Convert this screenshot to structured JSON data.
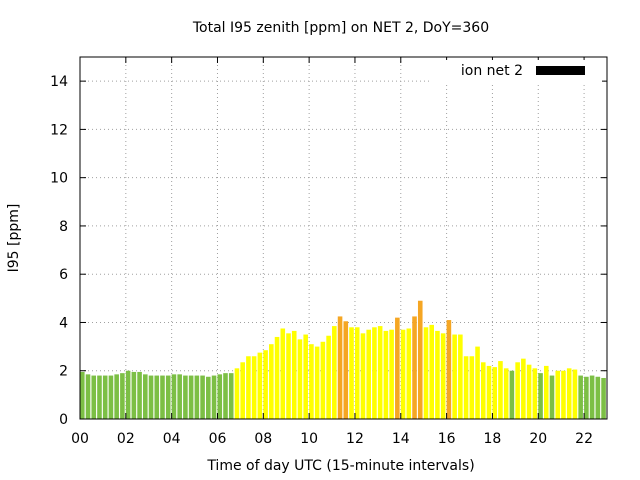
{
  "chart_data": {
    "type": "bar",
    "title": "Total I95 zenith [ppm] on NET 2, DoY=360",
    "xlabel": "Time of day UTC (15-minute intervals)",
    "ylabel": "I95 [ppm]",
    "xlim": [
      0,
      23
    ],
    "ylim": [
      0,
      15
    ],
    "x_ticks": [
      "00",
      "02",
      "04",
      "06",
      "08",
      "10",
      "12",
      "14",
      "16",
      "18",
      "20",
      "22"
    ],
    "y_ticks": [
      "0",
      "2",
      "4",
      "6",
      "8",
      "10",
      "12",
      "14"
    ],
    "grid": true,
    "legend": {
      "position": "top-right",
      "label": "ion net 2",
      "color": "#000000"
    },
    "colors": {
      "green": "#7cbf45",
      "yellow": "#ffff00",
      "orange": "#f5a623"
    },
    "bars": [
      {
        "x": 0.0,
        "y": 1.95,
        "c": "green"
      },
      {
        "x": 0.25,
        "y": 1.85,
        "c": "green"
      },
      {
        "x": 0.5,
        "y": 1.8,
        "c": "green"
      },
      {
        "x": 0.75,
        "y": 1.8,
        "c": "green"
      },
      {
        "x": 1.0,
        "y": 1.8,
        "c": "green"
      },
      {
        "x": 1.25,
        "y": 1.8,
        "c": "green"
      },
      {
        "x": 1.5,
        "y": 1.85,
        "c": "green"
      },
      {
        "x": 1.75,
        "y": 1.9,
        "c": "green"
      },
      {
        "x": 2.0,
        "y": 2.0,
        "c": "green"
      },
      {
        "x": 2.25,
        "y": 1.95,
        "c": "green"
      },
      {
        "x": 2.5,
        "y": 1.95,
        "c": "green"
      },
      {
        "x": 2.75,
        "y": 1.85,
        "c": "green"
      },
      {
        "x": 3.0,
        "y": 1.8,
        "c": "green"
      },
      {
        "x": 3.25,
        "y": 1.8,
        "c": "green"
      },
      {
        "x": 3.5,
        "y": 1.8,
        "c": "green"
      },
      {
        "x": 3.75,
        "y": 1.8,
        "c": "green"
      },
      {
        "x": 4.0,
        "y": 1.85,
        "c": "green"
      },
      {
        "x": 4.25,
        "y": 1.85,
        "c": "green"
      },
      {
        "x": 4.5,
        "y": 1.8,
        "c": "green"
      },
      {
        "x": 4.75,
        "y": 1.8,
        "c": "green"
      },
      {
        "x": 5.0,
        "y": 1.8,
        "c": "green"
      },
      {
        "x": 5.25,
        "y": 1.8,
        "c": "green"
      },
      {
        "x": 5.5,
        "y": 1.75,
        "c": "green"
      },
      {
        "x": 5.75,
        "y": 1.8,
        "c": "green"
      },
      {
        "x": 6.0,
        "y": 1.85,
        "c": "green"
      },
      {
        "x": 6.25,
        "y": 1.9,
        "c": "green"
      },
      {
        "x": 6.5,
        "y": 1.9,
        "c": "green"
      },
      {
        "x": 6.75,
        "y": 2.1,
        "c": "yellow"
      },
      {
        "x": 7.0,
        "y": 2.35,
        "c": "yellow"
      },
      {
        "x": 7.25,
        "y": 2.6,
        "c": "yellow"
      },
      {
        "x": 7.5,
        "y": 2.6,
        "c": "yellow"
      },
      {
        "x": 7.75,
        "y": 2.75,
        "c": "yellow"
      },
      {
        "x": 8.0,
        "y": 2.85,
        "c": "yellow"
      },
      {
        "x": 8.25,
        "y": 3.1,
        "c": "yellow"
      },
      {
        "x": 8.5,
        "y": 3.4,
        "c": "yellow"
      },
      {
        "x": 8.75,
        "y": 3.75,
        "c": "yellow"
      },
      {
        "x": 9.0,
        "y": 3.55,
        "c": "yellow"
      },
      {
        "x": 9.25,
        "y": 3.65,
        "c": "yellow"
      },
      {
        "x": 9.5,
        "y": 3.3,
        "c": "yellow"
      },
      {
        "x": 9.75,
        "y": 3.5,
        "c": "yellow"
      },
      {
        "x": 10.0,
        "y": 3.1,
        "c": "yellow"
      },
      {
        "x": 10.25,
        "y": 3.0,
        "c": "yellow"
      },
      {
        "x": 10.5,
        "y": 3.2,
        "c": "yellow"
      },
      {
        "x": 10.75,
        "y": 3.45,
        "c": "yellow"
      },
      {
        "x": 11.0,
        "y": 3.85,
        "c": "yellow"
      },
      {
        "x": 11.25,
        "y": 4.25,
        "c": "orange"
      },
      {
        "x": 11.5,
        "y": 4.05,
        "c": "orange"
      },
      {
        "x": 11.75,
        "y": 3.8,
        "c": "yellow"
      },
      {
        "x": 12.0,
        "y": 3.8,
        "c": "yellow"
      },
      {
        "x": 12.25,
        "y": 3.55,
        "c": "yellow"
      },
      {
        "x": 12.5,
        "y": 3.7,
        "c": "yellow"
      },
      {
        "x": 12.75,
        "y": 3.8,
        "c": "yellow"
      },
      {
        "x": 13.0,
        "y": 3.85,
        "c": "yellow"
      },
      {
        "x": 13.25,
        "y": 3.65,
        "c": "yellow"
      },
      {
        "x": 13.5,
        "y": 3.7,
        "c": "yellow"
      },
      {
        "x": 13.75,
        "y": 4.2,
        "c": "orange"
      },
      {
        "x": 14.0,
        "y": 3.7,
        "c": "yellow"
      },
      {
        "x": 14.25,
        "y": 3.75,
        "c": "yellow"
      },
      {
        "x": 14.5,
        "y": 4.25,
        "c": "orange"
      },
      {
        "x": 14.75,
        "y": 4.9,
        "c": "orange"
      },
      {
        "x": 15.0,
        "y": 3.8,
        "c": "yellow"
      },
      {
        "x": 15.25,
        "y": 3.9,
        "c": "yellow"
      },
      {
        "x": 15.5,
        "y": 3.65,
        "c": "yellow"
      },
      {
        "x": 15.75,
        "y": 3.55,
        "c": "yellow"
      },
      {
        "x": 16.0,
        "y": 4.1,
        "c": "orange"
      },
      {
        "x": 16.25,
        "y": 3.5,
        "c": "yellow"
      },
      {
        "x": 16.5,
        "y": 3.5,
        "c": "yellow"
      },
      {
        "x": 16.75,
        "y": 2.6,
        "c": "yellow"
      },
      {
        "x": 17.0,
        "y": 2.6,
        "c": "yellow"
      },
      {
        "x": 17.25,
        "y": 3.0,
        "c": "yellow"
      },
      {
        "x": 17.5,
        "y": 2.35,
        "c": "yellow"
      },
      {
        "x": 17.75,
        "y": 2.2,
        "c": "yellow"
      },
      {
        "x": 18.0,
        "y": 2.15,
        "c": "yellow"
      },
      {
        "x": 18.25,
        "y": 2.4,
        "c": "yellow"
      },
      {
        "x": 18.5,
        "y": 2.1,
        "c": "yellow"
      },
      {
        "x": 18.75,
        "y": 2.0,
        "c": "green"
      },
      {
        "x": 19.0,
        "y": 2.35,
        "c": "yellow"
      },
      {
        "x": 19.25,
        "y": 2.5,
        "c": "yellow"
      },
      {
        "x": 19.5,
        "y": 2.25,
        "c": "yellow"
      },
      {
        "x": 19.75,
        "y": 2.1,
        "c": "yellow"
      },
      {
        "x": 20.0,
        "y": 1.9,
        "c": "green"
      },
      {
        "x": 20.25,
        "y": 2.2,
        "c": "yellow"
      },
      {
        "x": 20.5,
        "y": 1.8,
        "c": "green"
      },
      {
        "x": 20.75,
        "y": 2.0,
        "c": "yellow"
      },
      {
        "x": 21.0,
        "y": 2.0,
        "c": "yellow"
      },
      {
        "x": 21.25,
        "y": 2.1,
        "c": "yellow"
      },
      {
        "x": 21.5,
        "y": 2.05,
        "c": "yellow"
      },
      {
        "x": 21.75,
        "y": 1.8,
        "c": "green"
      },
      {
        "x": 22.0,
        "y": 1.75,
        "c": "green"
      },
      {
        "x": 22.25,
        "y": 1.8,
        "c": "green"
      },
      {
        "x": 22.5,
        "y": 1.75,
        "c": "green"
      },
      {
        "x": 22.75,
        "y": 1.7,
        "c": "green"
      }
    ]
  }
}
